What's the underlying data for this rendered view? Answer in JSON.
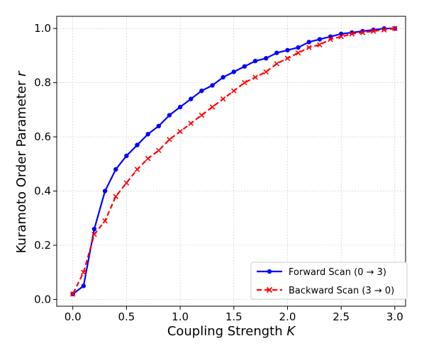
{
  "chart_data": {
    "type": "line",
    "xlabel": "Coupling Strength K",
    "ylabel": "Kuramoto Order Parameter r",
    "xlabel_main": "Coupling Strength ",
    "xlabel_var": "K",
    "ylabel_main": "Kuramoto Order Parameter ",
    "ylabel_var": "r",
    "xlim": [
      -0.15,
      3.1
    ],
    "ylim": [
      -0.025,
      1.045
    ],
    "xticks": [
      "0.0",
      "0.5",
      "1.0",
      "1.5",
      "2.0",
      "2.5",
      "3.0"
    ],
    "yticks": [
      "0.0",
      "0.2",
      "0.4",
      "0.6",
      "0.8",
      "1.0"
    ],
    "grid": true,
    "legend_position": "lower-right",
    "series": [
      {
        "name": "Forward Scan (0 → 3)",
        "color": "#0000ff",
        "style": "solid",
        "marker": "circle",
        "x": [
          0.0,
          0.1,
          0.2,
          0.3,
          0.4,
          0.5,
          0.6,
          0.7,
          0.8,
          0.9,
          1.0,
          1.1,
          1.2,
          1.3,
          1.4,
          1.5,
          1.6,
          1.7,
          1.8,
          1.9,
          2.0,
          2.1,
          2.2,
          2.3,
          2.4,
          2.5,
          2.6,
          2.7,
          2.8,
          2.9,
          3.0
        ],
        "y": [
          0.02,
          0.05,
          0.26,
          0.4,
          0.48,
          0.53,
          0.57,
          0.61,
          0.64,
          0.68,
          0.71,
          0.74,
          0.77,
          0.79,
          0.82,
          0.84,
          0.86,
          0.88,
          0.89,
          0.91,
          0.92,
          0.93,
          0.95,
          0.96,
          0.97,
          0.98,
          0.985,
          0.99,
          0.995,
          1.0,
          1.0
        ]
      },
      {
        "name": "Backward Scan (3 → 0)",
        "color": "#ff0000",
        "style": "dashed",
        "marker": "x",
        "x": [
          3.0,
          2.9,
          2.8,
          2.7,
          2.6,
          2.5,
          2.4,
          2.3,
          2.2,
          2.1,
          2.0,
          1.9,
          1.8,
          1.7,
          1.6,
          1.5,
          1.4,
          1.3,
          1.2,
          1.1,
          1.0,
          0.9,
          0.8,
          0.7,
          0.6,
          0.5,
          0.4,
          0.3,
          0.2,
          0.1,
          0.0
        ],
        "y": [
          1.0,
          0.995,
          0.99,
          0.985,
          0.98,
          0.97,
          0.96,
          0.94,
          0.93,
          0.91,
          0.89,
          0.87,
          0.84,
          0.82,
          0.8,
          0.77,
          0.74,
          0.71,
          0.68,
          0.65,
          0.62,
          0.59,
          0.55,
          0.52,
          0.48,
          0.43,
          0.38,
          0.29,
          0.24,
          0.1,
          0.02
        ]
      }
    ]
  }
}
